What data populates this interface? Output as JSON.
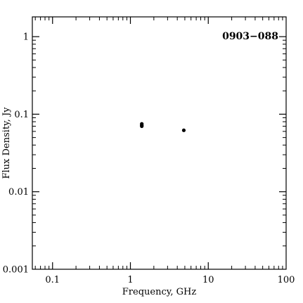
{
  "chart_data": {
    "type": "scatter",
    "title": "",
    "annotation": "0903−088",
    "xlabel": "Frequency, GHz",
    "ylabel": "Flux Density, Jy",
    "xscale": "log",
    "yscale": "log",
    "xlim": [
      0.055,
      100
    ],
    "ylim": [
      0.001,
      1.8
    ],
    "x_ticks": [
      {
        "value": 0.1,
        "label": "0.1"
      },
      {
        "value": 1,
        "label": "1"
      },
      {
        "value": 10,
        "label": "10"
      },
      {
        "value": 100,
        "label": "100"
      }
    ],
    "y_ticks": [
      {
        "value": 0.001,
        "label": "0.001"
      },
      {
        "value": 0.01,
        "label": "0.01"
      },
      {
        "value": 0.1,
        "label": "0.1"
      },
      {
        "value": 1,
        "label": "1"
      }
    ],
    "grid": false,
    "points": [
      {
        "x": 1.4,
        "y": 0.075
      },
      {
        "x": 1.4,
        "y": 0.072
      },
      {
        "x": 1.4,
        "y": 0.07
      },
      {
        "x": 4.85,
        "y": 0.062
      }
    ],
    "colors": {
      "marker": "#000000",
      "axis": "#000000"
    }
  }
}
